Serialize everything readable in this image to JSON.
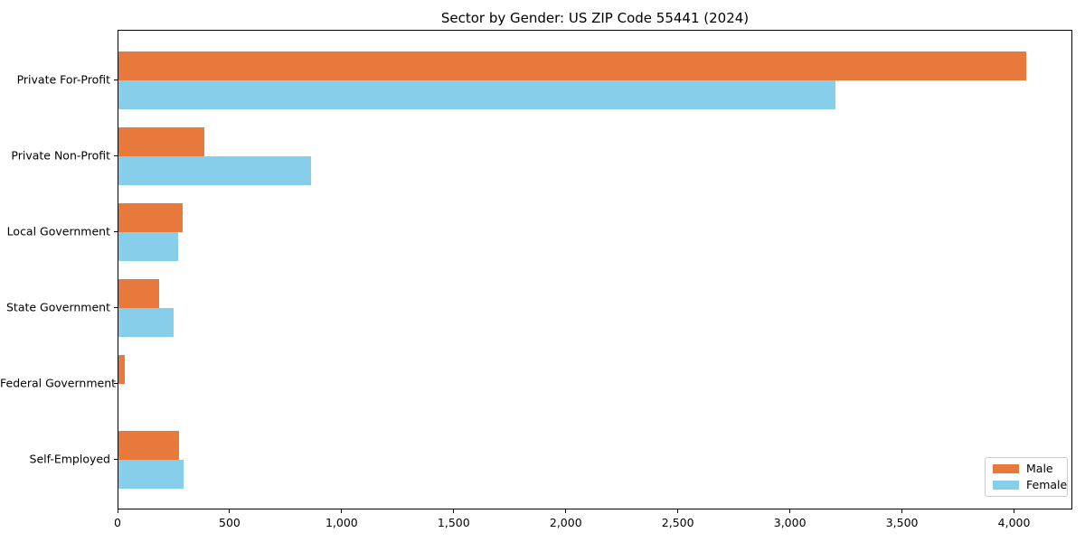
{
  "title": "Sector by Gender: US ZIP Code 55441 (2024)",
  "chart_data": {
    "type": "bar",
    "orientation": "horizontal",
    "title": "Sector by Gender: US ZIP Code 55441 (2024)",
    "categories": [
      "Private For-Profit",
      "Private Non-Profit",
      "Local Government",
      "State Government",
      "Federal Government",
      "Self-Employed"
    ],
    "series": [
      {
        "name": "Male",
        "color": "#e8793c",
        "values": [
          4050,
          385,
          285,
          180,
          30,
          270
        ]
      },
      {
        "name": "Female",
        "color": "#87ceeb",
        "values": [
          3200,
          860,
          265,
          245,
          0,
          290
        ]
      }
    ],
    "xlabel": "",
    "ylabel": "",
    "xlim": [
      0,
      4260
    ],
    "xticks": [
      {
        "value": 0,
        "label": "0"
      },
      {
        "value": 500,
        "label": "500"
      },
      {
        "value": 1000,
        "label": "1,000"
      },
      {
        "value": 1500,
        "label": "1,500"
      },
      {
        "value": 2000,
        "label": "2,000"
      },
      {
        "value": 2500,
        "label": "2,500"
      },
      {
        "value": 3000,
        "label": "3,000"
      },
      {
        "value": 3500,
        "label": "3,500"
      },
      {
        "value": 4000,
        "label": "4,000"
      }
    ],
    "grid": false,
    "legend_position": "lower right"
  }
}
